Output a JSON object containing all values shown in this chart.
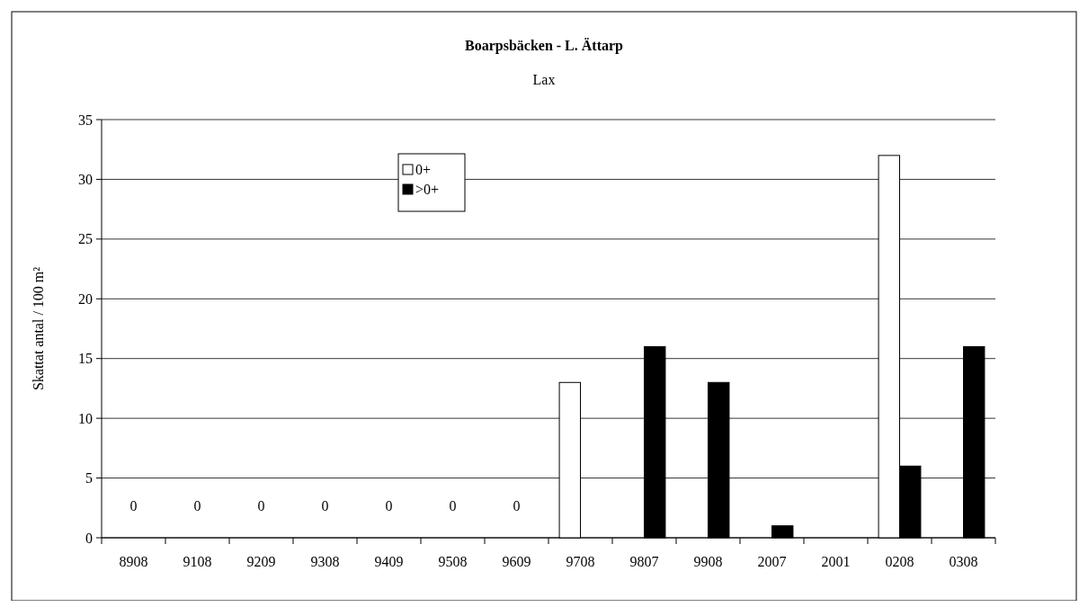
{
  "chart_data": {
    "type": "bar",
    "title": "Boarpsbäcken - L. Ättarp",
    "subtitle": "Lax",
    "ylabel": "Skattat antal / 100 m²",
    "categories": [
      "8908",
      "9108",
      "9209",
      "9308",
      "9409",
      "9508",
      "9609",
      "9708",
      "9807",
      "9908",
      "2007",
      "2001",
      "0208",
      "0308"
    ],
    "series": [
      {
        "name": "0+",
        "color": "#ffffff",
        "values": [
          0,
          0,
          0,
          0,
          0,
          0,
          0,
          13,
          0,
          0,
          0,
          0,
          32,
          0
        ],
        "value_labels": [
          "0",
          "0",
          "0",
          "0",
          "0",
          "0",
          "0",
          null,
          null,
          null,
          null,
          null,
          null,
          null
        ]
      },
      {
        "name": ">0+",
        "color": "#000000",
        "values": [
          0,
          0,
          0,
          0,
          0,
          0,
          0,
          0,
          16,
          13,
          1,
          0,
          6,
          16
        ]
      }
    ],
    "ylim": [
      0,
      35
    ],
    "yticks": [
      0,
      5,
      10,
      15,
      20,
      25,
      30,
      35
    ],
    "grid": "y",
    "legend": "top left"
  }
}
